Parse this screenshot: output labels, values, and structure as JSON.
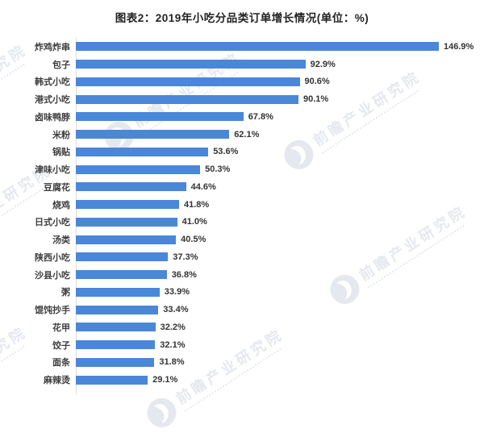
{
  "title": "图表2：2019年小吃分品类订单增长情况(单位：%)",
  "watermark": {
    "brand_text": "前瞻产业研究院",
    "logo": "qianzhan-bird-logo"
  },
  "colors": {
    "bar": "#4a87d8",
    "title_text": "#222222",
    "label_text": "#3d3d3d",
    "watermark": "#ccd3de",
    "axis_line": "#dcdcdc"
  },
  "chart_data": {
    "type": "bar",
    "orientation": "horizontal",
    "title": "图表2：2019年小吃分品类订单增长情况(单位：%)",
    "unit": "%",
    "categories": [
      "炸鸡炸串",
      "包子",
      "韩式小吃",
      "港式小吃",
      "卤味鸭脖",
      "米粉",
      "锅贴",
      "津味小吃",
      "豆腐花",
      "烧鸡",
      "日式小吃",
      "汤类",
      "陕西小吃",
      "沙县小吃",
      "粥",
      "馄饨抄手",
      "花甲",
      "饺子",
      "面条",
      "麻辣烫"
    ],
    "values": [
      146.9,
      92.9,
      90.6,
      90.1,
      67.8,
      62.1,
      53.6,
      50.3,
      44.6,
      41.8,
      41.0,
      40.5,
      37.3,
      36.8,
      33.9,
      33.4,
      32.2,
      32.1,
      31.8,
      29.1
    ],
    "value_labels": [
      "146.9%",
      "92.9%",
      "90.6%",
      "90.1%",
      "67.8%",
      "62.1%",
      "53.6%",
      "50.3%",
      "44.6%",
      "41.8%",
      "41.0%",
      "40.5%",
      "37.3%",
      "36.8%",
      "33.9%",
      "33.4%",
      "32.2%",
      "32.1%",
      "31.8%",
      "29.1%"
    ],
    "xlim": [
      0,
      150
    ],
    "grid": false,
    "legend": false,
    "value_labels_shown": true
  }
}
